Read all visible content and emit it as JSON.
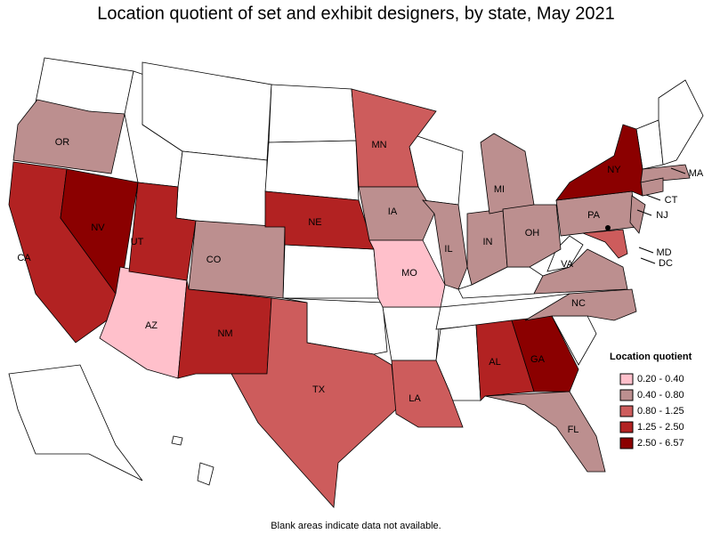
{
  "title": "Location quotient of set and exhibit designers, by state, May 2021",
  "footnote": "Blank areas indicate data not available.",
  "legend": {
    "title": "Location quotient",
    "items": [
      {
        "label": "0.20 - 0.40",
        "color": "#ffc0cb"
      },
      {
        "label": "0.40 - 0.80",
        "color": "#bc8f8f"
      },
      {
        "label": "0.80 - 1.25",
        "color": "#cd5c5c"
      },
      {
        "label": "1.25 - 2.50",
        "color": "#b22222"
      },
      {
        "label": "2.50 - 6.57",
        "color": "#8b0000"
      }
    ]
  },
  "states": [
    {
      "label": "OR",
      "class": 1
    },
    {
      "label": "CA",
      "class": 3
    },
    {
      "label": "NV",
      "class": 4
    },
    {
      "label": "AZ",
      "class": 0
    },
    {
      "label": "UT",
      "class": 3
    },
    {
      "label": "CO",
      "class": 1
    },
    {
      "label": "NM",
      "class": 3
    },
    {
      "label": "TX",
      "class": 2
    },
    {
      "label": "NE",
      "class": 3
    },
    {
      "label": "MN",
      "class": 2
    },
    {
      "label": "IA",
      "class": 1
    },
    {
      "label": "MO",
      "class": 0
    },
    {
      "label": "IL",
      "class": 1
    },
    {
      "label": "IN",
      "class": 1
    },
    {
      "label": "MI",
      "class": 1
    },
    {
      "label": "OH",
      "class": 1
    },
    {
      "label": "LA",
      "class": 2
    },
    {
      "label": "AL",
      "class": 3
    },
    {
      "label": "GA",
      "class": 4
    },
    {
      "label": "FL",
      "class": 1
    },
    {
      "label": "NC",
      "class": 1
    },
    {
      "label": "VA",
      "class": 1
    },
    {
      "label": "PA",
      "class": 1
    },
    {
      "label": "NY",
      "class": 4
    },
    {
      "label": "MA",
      "class": 1
    },
    {
      "label": "CT",
      "class": 1
    },
    {
      "label": "NJ",
      "class": 1
    },
    {
      "label": "MD",
      "class": 2
    },
    {
      "label": "DC",
      "class": 4
    }
  ]
}
